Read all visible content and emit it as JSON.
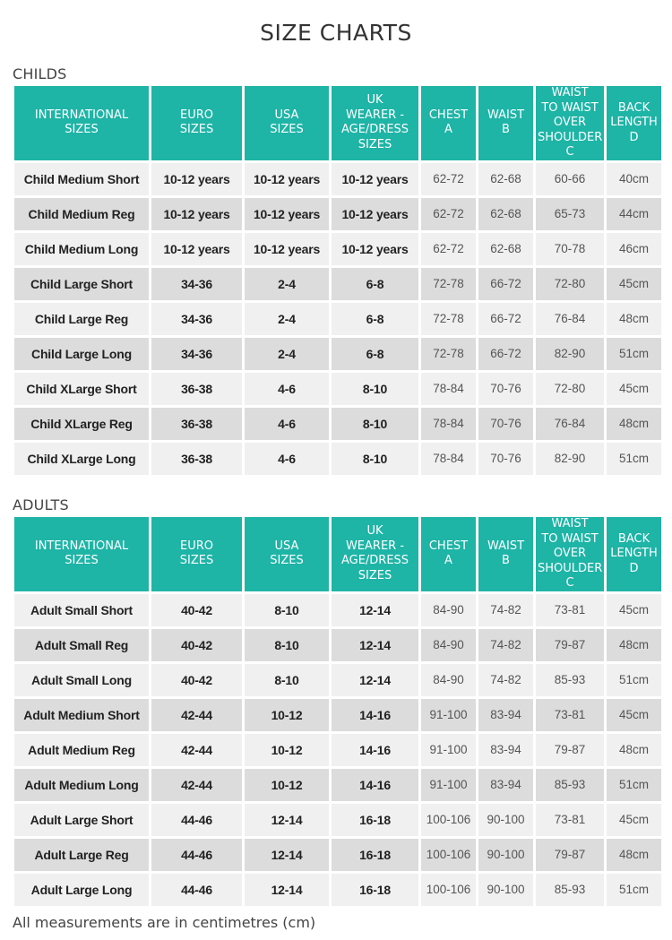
{
  "title": "SIZE CHARTS",
  "headers": [
    [
      "INTERNATIONAL",
      "SIZES"
    ],
    [
      "EURO",
      "SIZES"
    ],
    [
      "USA",
      "SIZES"
    ],
    [
      "UK",
      "WEARER -",
      "AGE/DRESS",
      "SIZES"
    ],
    [
      "CHEST",
      "A"
    ],
    [
      "WAIST",
      "B"
    ],
    [
      "WAIST",
      "TO WAIST",
      "OVER",
      "SHOULDER",
      "C"
    ],
    [
      "BACK",
      "LENGTH",
      "D"
    ]
  ],
  "childs": {
    "title": "CHILDS",
    "rows": [
      [
        "Child Medium Short",
        "10-12 years",
        "10-12 years",
        "10-12 years",
        "62-72",
        "62-68",
        "60-66",
        "40cm"
      ],
      [
        "Child Medium Reg",
        "10-12 years",
        "10-12 years",
        "10-12 years",
        "62-72",
        "62-68",
        "65-73",
        "44cm"
      ],
      [
        "Child Medium Long",
        "10-12 years",
        "10-12 years",
        "10-12 years",
        "62-72",
        "62-68",
        "70-78",
        "46cm"
      ],
      [
        "Child Large Short",
        "34-36",
        "2-4",
        "6-8",
        "72-78",
        "66-72",
        "72-80",
        "45cm"
      ],
      [
        "Child Large Reg",
        "34-36",
        "2-4",
        "6-8",
        "72-78",
        "66-72",
        "76-84",
        "48cm"
      ],
      [
        "Child Large Long",
        "34-36",
        "2-4",
        "6-8",
        "72-78",
        "66-72",
        "82-90",
        "51cm"
      ],
      [
        "Child XLarge Short",
        "36-38",
        "4-6",
        "8-10",
        "78-84",
        "70-76",
        "72-80",
        "45cm"
      ],
      [
        "Child XLarge Reg",
        "36-38",
        "4-6",
        "8-10",
        "78-84",
        "70-76",
        "76-84",
        "48cm"
      ],
      [
        "Child XLarge Long",
        "36-38",
        "4-6",
        "8-10",
        "78-84",
        "70-76",
        "82-90",
        "51cm"
      ]
    ]
  },
  "adults": {
    "title": "ADULTS",
    "rows": [
      [
        "Adult Small Short",
        "40-42",
        "8-10",
        "12-14",
        "84-90",
        "74-82",
        "73-81",
        "45cm"
      ],
      [
        "Adult Small Reg",
        "40-42",
        "8-10",
        "12-14",
        "84-90",
        "74-82",
        "79-87",
        "48cm"
      ],
      [
        "Adult Small Long",
        "40-42",
        "8-10",
        "12-14",
        "84-90",
        "74-82",
        "85-93",
        "51cm"
      ],
      [
        "Adult Medium Short",
        "42-44",
        "10-12",
        "14-16",
        "91-100",
        "83-94",
        "73-81",
        "45cm"
      ],
      [
        "Adult Medium Reg",
        "42-44",
        "10-12",
        "14-16",
        "91-100",
        "83-94",
        "79-87",
        "48cm"
      ],
      [
        "Adult Medium Long",
        "42-44",
        "10-12",
        "14-16",
        "91-100",
        "83-94",
        "85-93",
        "51cm"
      ],
      [
        "Adult Large Short",
        "44-46",
        "12-14",
        "16-18",
        "100-106",
        "90-100",
        "73-81",
        "45cm"
      ],
      [
        "Adult Large Reg",
        "44-46",
        "12-14",
        "16-18",
        "100-106",
        "90-100",
        "79-87",
        "48cm"
      ],
      [
        "Adult Large Long",
        "44-46",
        "12-14",
        "16-18",
        "100-106",
        "90-100",
        "85-93",
        "51cm"
      ]
    ]
  },
  "footnote": "All measurements are in centimetres (cm)",
  "colors": {
    "header_bg": "#1eb4a6",
    "row_light": "#f0f0f0",
    "row_dark": "#dcdcdc"
  }
}
